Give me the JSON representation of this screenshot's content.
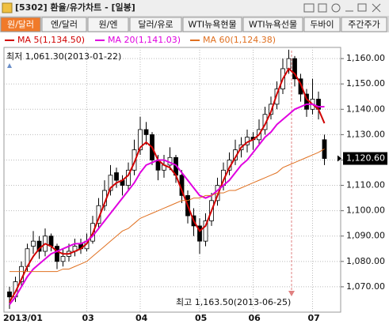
{
  "window": {
    "title": "[5302] 환율/유가차트 - [일봉]"
  },
  "tabs": [
    "원/달러",
    "엔/달러",
    "원/엔",
    "달러/유로",
    "WTI뉴욕현물",
    "WTI뉴욕선물",
    "두바이",
    "주간주가"
  ],
  "chart_data": {
    "type": "candlestick",
    "candles": [
      [
        1068,
        1070,
        1061.3,
        1066
      ],
      [
        1066,
        1074,
        1064,
        1072
      ],
      [
        1072,
        1080,
        1070,
        1078
      ],
      [
        1078,
        1087,
        1076,
        1085
      ],
      [
        1086,
        1092,
        1083,
        1088
      ],
      [
        1088,
        1090,
        1081,
        1084
      ],
      [
        1084,
        1093,
        1082,
        1090
      ],
      [
        1090,
        1091,
        1084,
        1086
      ],
      [
        1086,
        1087,
        1077,
        1080
      ],
      [
        1080,
        1085,
        1078,
        1082
      ],
      [
        1082,
        1087,
        1080,
        1084
      ],
      [
        1084,
        1089,
        1082,
        1086
      ],
      [
        1087,
        1089,
        1083,
        1085
      ],
      [
        1085,
        1091,
        1084,
        1088
      ],
      [
        1088,
        1098,
        1087,
        1095
      ],
      [
        1095,
        1105,
        1093,
        1102
      ],
      [
        1102,
        1112,
        1100,
        1108
      ],
      [
        1108,
        1118,
        1106,
        1114
      ],
      [
        1115,
        1117,
        1109,
        1112
      ],
      [
        1112,
        1114,
        1106,
        1110
      ],
      [
        1110,
        1119,
        1108,
        1116
      ],
      [
        1116,
        1128,
        1114,
        1124
      ],
      [
        1124,
        1137,
        1122,
        1132
      ],
      [
        1132,
        1135,
        1126,
        1130
      ],
      [
        1130,
        1131,
        1118,
        1120
      ],
      [
        1120,
        1122,
        1112,
        1116
      ],
      [
        1116,
        1122,
        1113,
        1118
      ],
      [
        1118,
        1125,
        1116,
        1121
      ],
      [
        1121,
        1122,
        1111,
        1114
      ],
      [
        1114,
        1116,
        1103,
        1106
      ],
      [
        1106,
        1108,
        1095,
        1098
      ],
      [
        1098,
        1101,
        1090,
        1094
      ],
      [
        1094,
        1097,
        1083,
        1088
      ],
      [
        1088,
        1099,
        1086,
        1096
      ],
      [
        1096,
        1107,
        1094,
        1104
      ],
      [
        1104,
        1113,
        1102,
        1110
      ],
      [
        1110,
        1119,
        1108,
        1116
      ],
      [
        1116,
        1123,
        1114,
        1120
      ],
      [
        1120,
        1128,
        1118,
        1124
      ],
      [
        1124,
        1129,
        1121,
        1126
      ],
      [
        1126,
        1132,
        1123,
        1129
      ],
      [
        1129,
        1131,
        1124,
        1128
      ],
      [
        1128,
        1136,
        1126,
        1132
      ],
      [
        1132,
        1141,
        1130,
        1138
      ],
      [
        1138,
        1145,
        1136,
        1142
      ],
      [
        1142,
        1151,
        1140,
        1148
      ],
      [
        1148,
        1160,
        1146,
        1156
      ],
      [
        1156,
        1163.5,
        1154,
        1160
      ],
      [
        1160,
        1161,
        1149,
        1152
      ],
      [
        1152,
        1154,
        1143,
        1146
      ],
      [
        1146,
        1148,
        1137,
        1140
      ],
      [
        1140,
        1152,
        1138,
        1144
      ],
      [
        1144,
        1147,
        1136,
        1140
      ],
      [
        1128,
        1130,
        1118,
        1120.6
      ]
    ],
    "series": [
      {
        "name": "MA 5(1,134.50)",
        "color": "#d00000",
        "values": [
          1064,
          1068,
          1073,
          1078,
          1082,
          1085,
          1087,
          1086,
          1084,
          1083,
          1083,
          1084,
          1085,
          1087,
          1091,
          1097,
          1103,
          1109,
          1111,
          1112,
          1114,
          1119,
          1125,
          1127,
          1125,
          1120,
          1118,
          1117,
          1114,
          1108,
          1102,
          1096,
          1092,
          1094,
          1100,
          1106,
          1112,
          1117,
          1121,
          1125,
          1127,
          1128,
          1130,
          1134,
          1139,
          1146,
          1152,
          1156,
          1154,
          1150,
          1144,
          1142,
          1140,
          1134.5
        ]
      },
      {
        "name": "MA 20(1,141.03)",
        "color": "#e000e0",
        "values": [
          1063,
          1066,
          1070,
          1074,
          1077,
          1079,
          1081,
          1083,
          1084,
          1085,
          1086,
          1087,
          1087,
          1088,
          1090,
          1093,
          1096,
          1099,
          1102,
          1105,
          1108,
          1111,
          1115,
          1118,
          1119,
          1120,
          1120,
          1119,
          1118,
          1115,
          1112,
          1109,
          1106,
          1105,
          1106,
          1108,
          1110,
          1112,
          1115,
          1118,
          1120,
          1123,
          1126,
          1129,
          1131,
          1134,
          1136,
          1138,
          1140,
          1141,
          1142,
          1142,
          1141,
          1141.03
        ]
      },
      {
        "name": "MA 60(1,124.38)",
        "color": "#e07020",
        "values": [
          1076,
          1076,
          1076,
          1076,
          1076,
          1076,
          1076,
          1076,
          1076,
          1077,
          1077,
          1078,
          1079,
          1080,
          1082,
          1084,
          1086,
          1088,
          1090,
          1092,
          1093,
          1095,
          1097,
          1098,
          1099,
          1100,
          1101,
          1102,
          1103,
          1104,
          1104,
          1105,
          1105,
          1106,
          1106,
          1107,
          1107,
          1108,
          1108,
          1109,
          1110,
          1111,
          1112,
          1113,
          1114,
          1115,
          1117,
          1118,
          1119,
          1120,
          1121,
          1122,
          1123,
          1124.38
        ]
      }
    ],
    "xticks": [
      {
        "value": 0,
        "label": "2013/01"
      },
      {
        "value": 13,
        "label": "03"
      },
      {
        "value": 22,
        "label": "04"
      },
      {
        "value": 32,
        "label": "05"
      },
      {
        "value": 41,
        "label": "06"
      },
      {
        "value": 51,
        "label": "07"
      }
    ],
    "ylim": [
      1060,
      1164.4
    ],
    "yticks": [
      {
        "value": 1070,
        "label": "1,070.00"
      },
      {
        "value": 1080,
        "label": "1,080.00"
      },
      {
        "value": 1090,
        "label": "1,090.00"
      },
      {
        "value": 1100,
        "label": "1,100.00"
      },
      {
        "value": 1110,
        "label": "1,110.00"
      },
      {
        "value": 1120,
        "label": "1,120.00"
      },
      {
        "value": 1130,
        "label": "1,130.00"
      },
      {
        "value": 1140,
        "label": "1,140.00"
      },
      {
        "value": 1150,
        "label": "1,150.00"
      },
      {
        "value": 1160,
        "label": "1,160.00"
      }
    ],
    "last_price": {
      "value": 1120.6,
      "label": "1,120.60"
    },
    "annotations": {
      "low": "최저 1,061.30(2013-01-22)",
      "high": "최고 1,163.50(2013-06-25)"
    },
    "grid": true
  }
}
